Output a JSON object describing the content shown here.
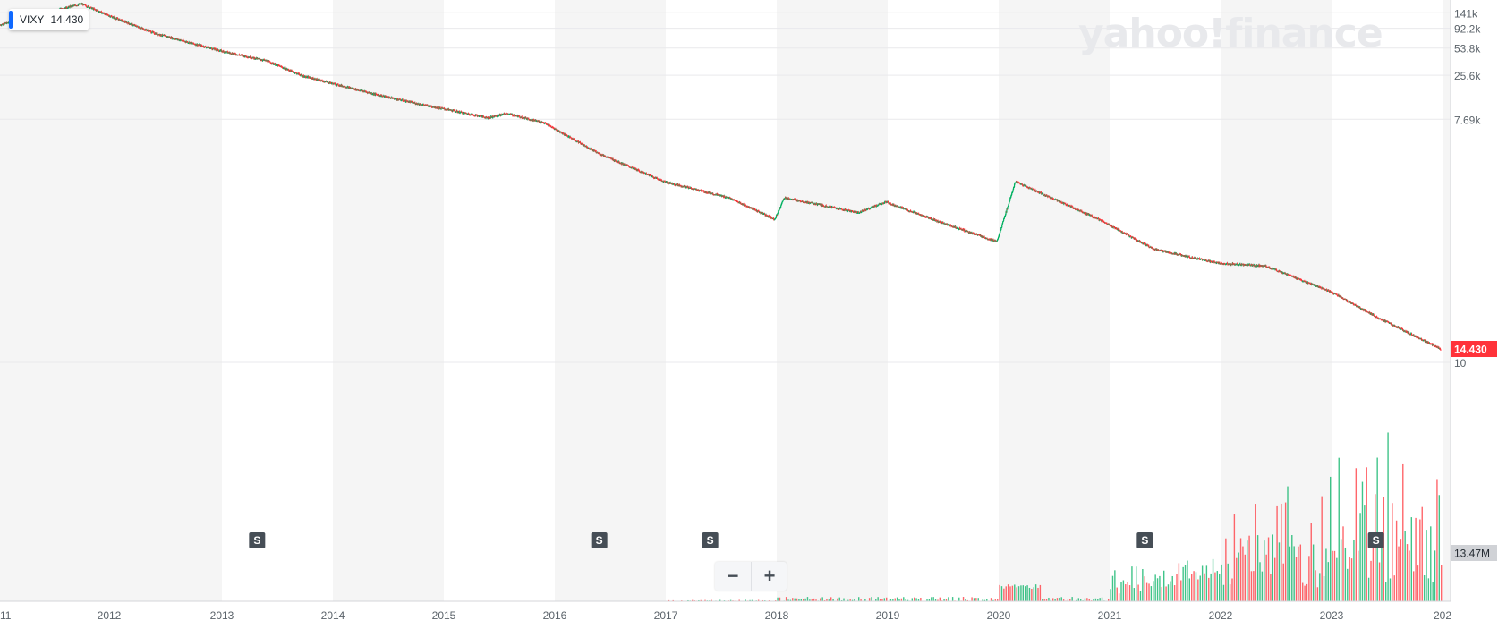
{
  "legend": {
    "symbol": "VIXY",
    "value": "14.430"
  },
  "watermark": {
    "text": "yahoo!finance"
  },
  "zoom": {
    "minus_label": "−",
    "plus_label": "+"
  },
  "price_label": "14.430",
  "volume_label": "13.47M",
  "event_marker_label": "S",
  "colors": {
    "up": "#00b061",
    "down": "#ff333a",
    "accent": "#0f69ff",
    "price_badge": "#ff333a",
    "volume_badge": "#d0d2d6"
  },
  "chart_data": {
    "type": "candlestick",
    "symbol": "VIXY",
    "y_scale": "log",
    "y_ticks": [
      "141k",
      "92.2k",
      "53.8k",
      "25.6k",
      "7.69k",
      "10"
    ],
    "x_ticks": [
      "11",
      "2012",
      "2013",
      "2014",
      "2015",
      "2016",
      "2017",
      "2018",
      "2019",
      "2020",
      "2021",
      "2022",
      "2023",
      "202"
    ],
    "price_path": [
      {
        "date": "2011-01",
        "close": 100000
      },
      {
        "date": "2011-10",
        "close": 180000
      },
      {
        "date": "2012-01",
        "close": 130000
      },
      {
        "date": "2012-06",
        "close": 80000
      },
      {
        "date": "2013-01",
        "close": 50000
      },
      {
        "date": "2013-06",
        "close": 38000
      },
      {
        "date": "2013-10",
        "close": 25000
      },
      {
        "date": "2014-06",
        "close": 15000
      },
      {
        "date": "2014-10",
        "close": 12000
      },
      {
        "date": "2015-06",
        "close": 8000
      },
      {
        "date": "2015-08",
        "close": 9000
      },
      {
        "date": "2015-12",
        "close": 7000
      },
      {
        "date": "2016-06",
        "close": 3000
      },
      {
        "date": "2017-01",
        "close": 1400
      },
      {
        "date": "2017-08",
        "close": 900
      },
      {
        "date": "2018-01",
        "close": 500
      },
      {
        "date": "2018-02",
        "close": 900
      },
      {
        "date": "2018-10",
        "close": 600
      },
      {
        "date": "2019-01",
        "close": 800
      },
      {
        "date": "2019-06",
        "close": 500
      },
      {
        "date": "2020-01",
        "close": 270
      },
      {
        "date": "2020-03",
        "close": 1400
      },
      {
        "date": "2020-12",
        "close": 500
      },
      {
        "date": "2021-06",
        "close": 220
      },
      {
        "date": "2022-01",
        "close": 150
      },
      {
        "date": "2022-06",
        "close": 140
      },
      {
        "date": "2023-01",
        "close": 70
      },
      {
        "date": "2023-06",
        "close": 35
      },
      {
        "date": "2024-01",
        "close": 14.43
      }
    ],
    "last_price": 14.43,
    "last_volume": "13.47M",
    "volume_trend": "near zero before 2018; grows from 2021; peaks in late 2023",
    "event_markers": [
      {
        "label": "S",
        "date": "2013-05"
      },
      {
        "label": "S",
        "date": "2016-06"
      },
      {
        "label": "S",
        "date": "2017-06"
      },
      {
        "label": "S",
        "date": "2021-05"
      },
      {
        "label": "S",
        "date": "2023-06"
      }
    ]
  }
}
